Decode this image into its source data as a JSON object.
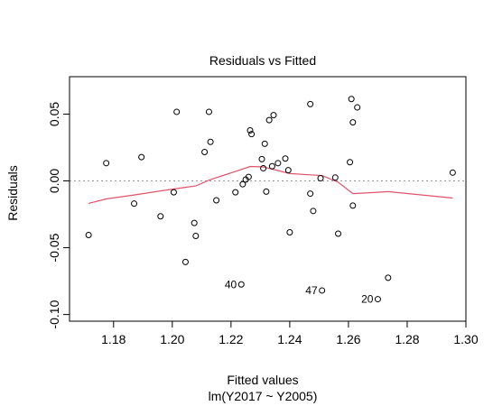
{
  "chart_data": {
    "type": "scatter",
    "title": "Residuals vs Fitted",
    "xlabel": "Fitted values",
    "subtitle": "lm(Y2017 ~ Y2005)",
    "ylabel": "Residuals",
    "xlim": [
      1.165,
      1.3
    ],
    "ylim": [
      -0.105,
      0.078
    ],
    "xticks": [
      1.18,
      1.2,
      1.22,
      1.24,
      1.26,
      1.28,
      1.3
    ],
    "xtick_labels": [
      "1.18",
      "1.20",
      "1.22",
      "1.24",
      "1.26",
      "1.28",
      "1.30"
    ],
    "yticks": [
      -0.1,
      -0.05,
      0.0,
      0.05
    ],
    "ytick_labels": [
      "-0.10",
      "-0.05",
      "0.00",
      "0.05"
    ],
    "reference_line_y": 0,
    "grid": false,
    "colors": {
      "points": "#000000",
      "smooth_line": "#DF536B",
      "reference_line": "#999999"
    },
    "points": [
      {
        "x": 1.1715,
        "y": -0.0405
      },
      {
        "x": 1.1775,
        "y": 0.0133
      },
      {
        "x": 1.187,
        "y": -0.017
      },
      {
        "x": 1.1895,
        "y": 0.0178
      },
      {
        "x": 1.196,
        "y": -0.0265
      },
      {
        "x": 1.2005,
        "y": -0.0085
      },
      {
        "x": 1.2015,
        "y": 0.0517
      },
      {
        "x": 1.2045,
        "y": -0.0607
      },
      {
        "x": 1.2075,
        "y": -0.0315
      },
      {
        "x": 1.208,
        "y": -0.0412
      },
      {
        "x": 1.211,
        "y": 0.0216
      },
      {
        "x": 1.2125,
        "y": 0.0517
      },
      {
        "x": 1.213,
        "y": 0.0292
      },
      {
        "x": 1.215,
        "y": -0.0145
      },
      {
        "x": 1.2215,
        "y": -0.0085
      },
      {
        "x": 1.2235,
        "y": -0.0775,
        "label": "40"
      },
      {
        "x": 1.224,
        "y": -0.0025
      },
      {
        "x": 1.225,
        "y": 0.001
      },
      {
        "x": 1.226,
        "y": 0.003
      },
      {
        "x": 1.2265,
        "y": 0.0378
      },
      {
        "x": 1.227,
        "y": 0.035
      },
      {
        "x": 1.2305,
        "y": 0.0163
      },
      {
        "x": 1.231,
        "y": 0.0095
      },
      {
        "x": 1.2315,
        "y": 0.0278
      },
      {
        "x": 1.232,
        "y": -0.008
      },
      {
        "x": 1.233,
        "y": 0.0455
      },
      {
        "x": 1.234,
        "y": 0.011
      },
      {
        "x": 1.2345,
        "y": 0.0492
      },
      {
        "x": 1.236,
        "y": 0.0133
      },
      {
        "x": 1.2385,
        "y": 0.0167
      },
      {
        "x": 1.2395,
        "y": 0.008
      },
      {
        "x": 1.24,
        "y": -0.0385
      },
      {
        "x": 1.247,
        "y": 0.0575
      },
      {
        "x": 1.247,
        "y": -0.0095
      },
      {
        "x": 1.248,
        "y": -0.0225
      },
      {
        "x": 1.2505,
        "y": 0.002
      },
      {
        "x": 1.251,
        "y": -0.082,
        "label": "47"
      },
      {
        "x": 1.2555,
        "y": 0.0025
      },
      {
        "x": 1.2565,
        "y": -0.0395
      },
      {
        "x": 1.2605,
        "y": 0.014
      },
      {
        "x": 1.261,
        "y": 0.0613
      },
      {
        "x": 1.2615,
        "y": 0.0438
      },
      {
        "x": 1.2615,
        "y": -0.0185
      },
      {
        "x": 1.263,
        "y": 0.055
      },
      {
        "x": 1.27,
        "y": -0.0885,
        "label": "20"
      },
      {
        "x": 1.2735,
        "y": -0.0725
      },
      {
        "x": 1.2955,
        "y": 0.0062
      }
    ],
    "smooth_line": {
      "x": [
        1.1715,
        1.1775,
        1.187,
        1.196,
        1.2045,
        1.208,
        1.213,
        1.2215,
        1.2265,
        1.231,
        1.236,
        1.24,
        1.247,
        1.251,
        1.2565,
        1.2615,
        1.27,
        1.2735,
        1.2955
      ],
      "y": [
        -0.0168,
        -0.0135,
        -0.0105,
        -0.0075,
        -0.0048,
        -0.0038,
        0.001,
        0.007,
        0.0108,
        0.0105,
        0.0078,
        0.0055,
        0.0045,
        0.004,
        -0.001,
        -0.0095,
        -0.0085,
        -0.008,
        -0.0128
      ]
    }
  }
}
